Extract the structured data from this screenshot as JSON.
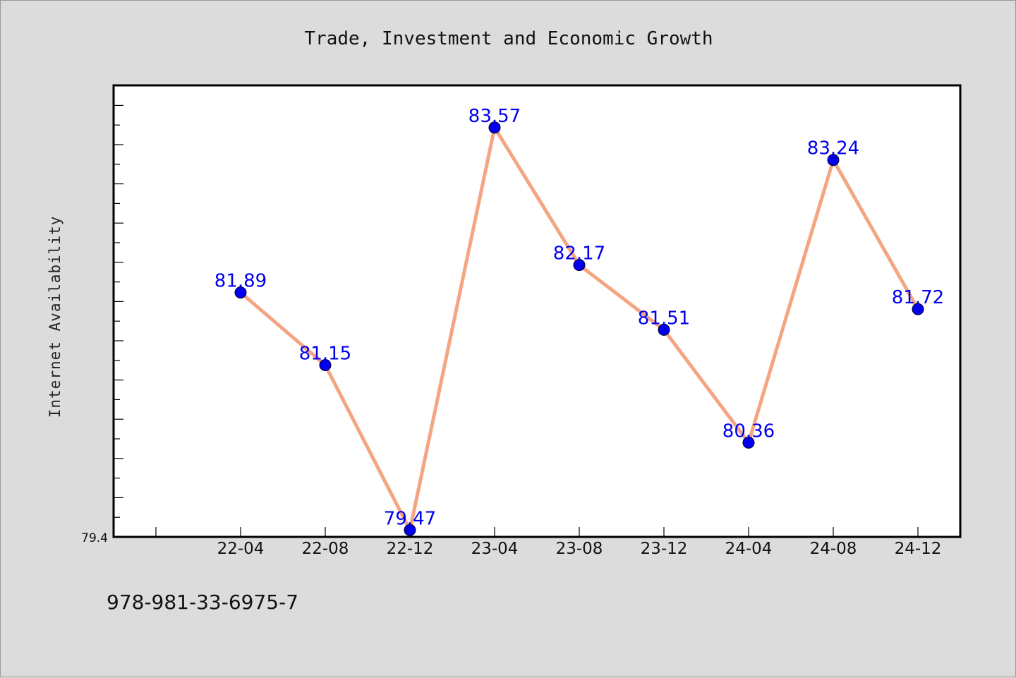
{
  "chart_data": {
    "type": "line",
    "title": "Trade, Investment and Economic Growth",
    "ylabel": "Internet Availability",
    "xlabel": "",
    "categories": [
      "22-04",
      "22-08",
      "22-12",
      "23-04",
      "23-08",
      "23-12",
      "24-04",
      "24-08",
      "24-12"
    ],
    "series": [
      {
        "values": [
          81.89,
          81.15,
          79.47,
          83.57,
          82.17,
          81.51,
          80.36,
          83.24,
          81.72
        ]
      }
    ],
    "data_labels": [
      "81.89",
      "81.15",
      "79.47",
      "83.57",
      "82.17",
      "81.51",
      "80.36",
      "83.24",
      "81.72"
    ],
    "ylim": [
      79.4,
      84.0
    ],
    "y_tick_label": "79.4",
    "line_color": "#f4a582",
    "marker_color": "#0000ee",
    "label_color": "#0000ee",
    "grid": false,
    "legend": "none"
  },
  "footer": {
    "isbn": "978-981-33-6975-7"
  }
}
